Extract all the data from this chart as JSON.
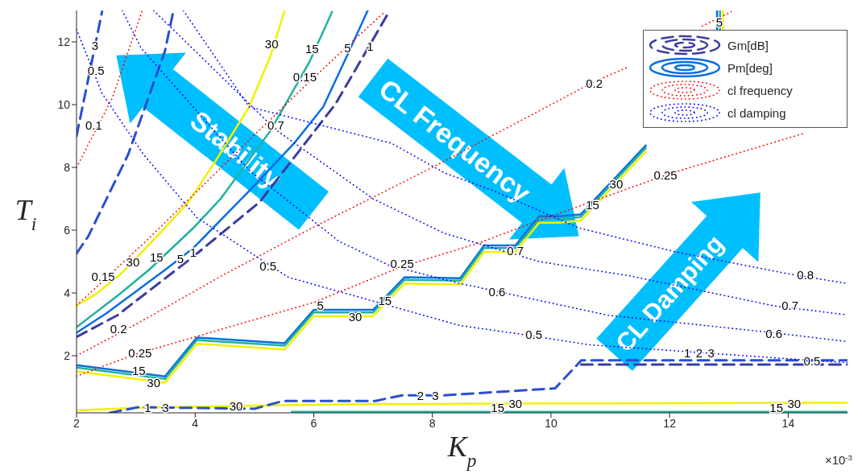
{
  "chart_data": {
    "type": "line",
    "xlabel": "K$_{p}$",
    "ylabel": "T$_{i}$",
    "xlim": [
      2,
      15
    ],
    "xticks": [
      2,
      4,
      6,
      8,
      10,
      12,
      14
    ],
    "ylim": [
      0.18,
      13
    ],
    "yticks": [
      2,
      4,
      6,
      8,
      10,
      12
    ],
    "legend": "top right",
    "series": [
      {
        "name": "Gm[dB]",
        "color": "#3c3ca0",
        "line_style": "dashed",
        "x": [
          2,
          2.69,
          3.93,
          5.09,
          6.37,
          7.27
        ],
        "values": [
          2.6,
          3.29,
          5.1,
          6.9,
          10.03,
          12.96
        ]
      },
      {
        "name": "Pm[deg]",
        "color": "#0a6ee0",
        "line_style": "solid",
        "x": [
          2,
          2.51,
          3.49,
          3.97,
          4.91,
          5.67,
          6.16,
          6.56,
          6.91
        ],
        "values": [
          2.73,
          3.36,
          4.73,
          5.43,
          7.25,
          8.77,
          9.93,
          11.55,
          13
        ]
      },
      {
        "color": "#20b2a0",
        "line_style": "solid",
        "x": [
          2,
          2.73,
          3.23,
          3.97,
          4.43,
          5.27,
          5.93,
          6.31
        ],
        "values": [
          2.91,
          3.97,
          4.75,
          6.07,
          7.0,
          9.17,
          11.37,
          12.96
        ]
      },
      {
        "color": "#f0f000",
        "line_style": "solid",
        "x": [
          2,
          2.33,
          2.76,
          3.49,
          3.89,
          4.33,
          4.91,
          5.27,
          5.51
        ],
        "values": [
          3.59,
          3.97,
          4.63,
          6.07,
          6.9,
          8.16,
          9.93,
          11.55,
          13
        ]
      },
      {
        "color": "#0a6ee0",
        "line_style": "solid",
        "x": [
          2,
          3.49,
          4.03,
          5.51,
          6.0,
          7.0,
          7.53,
          8.47,
          8.87,
          9.4,
          9.8,
          10.13,
          10.5,
          11.6,
          12.2,
          12.8,
          12.8
        ],
        "values": [
          1.7,
          1.34,
          2.58,
          2.4,
          3.46,
          3.46,
          4.5,
          4.47,
          5.51,
          5.51,
          6.44,
          6.44,
          6.5,
          8.7,
          null,
          12.35,
          13
        ]
      },
      {
        "color": "#20b2a0",
        "line_style": "solid",
        "x": [
          2,
          3.49,
          4.03,
          5.51,
          6.0,
          7.0,
          7.53,
          8.47,
          8.87,
          9.4,
          9.8,
          10.13,
          10.5,
          11.6,
          12.2,
          12.85,
          12.85
        ],
        "values": [
          1.62,
          1.26,
          2.5,
          2.32,
          3.38,
          3.38,
          4.42,
          4.39,
          5.43,
          5.43,
          6.36,
          6.36,
          6.42,
          8.62,
          null,
          12.35,
          13
        ]
      },
      {
        "color": "#f0f000",
        "line_style": "solid",
        "x": [
          2,
          3.49,
          4.03,
          5.51,
          6.0,
          7.0,
          7.53,
          8.47,
          8.87,
          9.4,
          9.8,
          10.13,
          10.5,
          11.6,
          12.2,
          12.9,
          12.9
        ],
        "values": [
          1.5,
          1.14,
          2.38,
          2.2,
          3.26,
          3.26,
          4.3,
          4.27,
          5.31,
          5.31,
          6.24,
          6.24,
          6.3,
          8.5,
          null,
          12.35,
          13
        ]
      },
      {
        "color": "#f0f000",
        "line_style": "solid",
        "x": [
          2,
          3,
          5,
          7,
          10,
          15
        ],
        "values": [
          0.26,
          0.34,
          0.41,
          0.46,
          0.48,
          0.5
        ]
      },
      {
        "color": "#20b2a0",
        "line_style": "solid",
        "x": [
          5.63,
          15
        ],
        "values": [
          0.21,
          0.21
        ]
      },
      {
        "color": "#2a4fd0",
        "line_style": "dashed",
        "x": [
          2,
          2.2,
          2.87,
          3.49,
          3.63
        ],
        "values": [
          5.26,
          5.81,
          8.41,
          11.7,
          12.96
        ]
      },
      {
        "color": "#2a4fd0",
        "line_style": "dashed",
        "x": [
          2,
          2.43
        ],
        "values": [
          9.0,
          12.96
        ]
      },
      {
        "color": "#2a4fd0",
        "line_style": "dashed",
        "x": [
          2.56,
          3.04,
          5.0,
          5.49,
          7.04,
          7.49,
          8.2,
          10.07,
          10.51,
          15
        ],
        "values": [
          0.18,
          0.36,
          0.31,
          0.56,
          0.56,
          0.74,
          0.74,
          0.96,
          1.85,
          1.85
        ]
      },
      {
        "color": "#3c3ca0",
        "line_style": "dashed",
        "x": [
          10.51,
          15
        ],
        "values": [
          1.72,
          1.72
        ]
      },
      {
        "color": "#ff0000",
        "line_style": "dotted",
        "x": [
          2,
          2.6,
          3.1
        ],
        "values": [
          8.0,
          10.2,
          12.96
        ]
      },
      {
        "color": "#ff0000",
        "line_style": "dotted",
        "x": [
          2,
          3.2,
          5.2,
          5.8,
          6.7,
          7.2
        ],
        "values": [
          3.6,
          5.7,
          9.4,
          10.5,
          12.1,
          12.96
        ]
      },
      {
        "name": "cl frequency",
        "color": "#ff0000",
        "line_style": "dotted",
        "x": [
          2,
          3,
          4.5,
          6,
          8,
          10.7,
          11.3,
          12.2,
          12.55,
          13.04
        ],
        "values": [
          2.0,
          3.0,
          4.6,
          6.1,
          8.0,
          10.7,
          11.2,
          null,
          12.5,
          12.96
        ]
      },
      {
        "color": "#ff0000",
        "line_style": "dotted",
        "x": [
          2,
          3,
          4,
          6,
          7.5,
          8.8,
          9.5,
          12,
          14.29
        ],
        "values": [
          1.35,
          2.05,
          2.6,
          3.7,
          4.85,
          5.6,
          6.1,
          7.8,
          9.1
        ]
      },
      {
        "name": "cl damping",
        "color": "#0000ff",
        "line_style": "dotted",
        "x": [
          2,
          2.43,
          3.13,
          4.03,
          5.57,
          8.47,
          9.44,
          10.64,
          14.4,
          15
        ],
        "values": [
          12.4,
          10.36,
          8.41,
          6.4,
          4.5,
          2.96,
          2.7,
          2.35,
          1.85,
          1.78
        ]
      },
      {
        "color": "#0000ff",
        "line_style": "dotted",
        "x": [
          2.77,
          3.09,
          4.91,
          6.43,
          7.27,
          8.47,
          9.09,
          10.96,
          13.76,
          15
        ],
        "values": [
          13,
          11.8,
          7.91,
          5.64,
          4.88,
          4.3,
          4.05,
          3.29,
          2.73,
          2.45
        ]
      },
      {
        "color": "#0000ff",
        "line_style": "dotted",
        "x": [
          3.3,
          5.36,
          7.0,
          8.2,
          9.8,
          11.31,
          13.76,
          15
        ],
        "values": [
          13,
          9.2,
          7.0,
          5.9,
          5.0,
          4.55,
          3.59,
          3.3
        ]
      },
      {
        "color": "#0000ff",
        "line_style": "dotted",
        "x": [
          3.8,
          4.91,
          7.31,
          8.2,
          9.04,
          10.47,
          12.1,
          14.03,
          15
        ],
        "values": [
          13,
          9.93,
          8.77,
          7.83,
          7.25,
          6.07,
          5.31,
          4.6,
          4.3
        ]
      }
    ],
    "annotations": [
      "Stability",
      "CL Frequency",
      "CL Damping",
      "×10$^{-3}$",
      {
        "text": "3",
        "x": 2.31,
        "y": 11.9
      },
      {
        "text": "0.5",
        "x": 2.33,
        "y": 11.1
      },
      {
        "text": "0.1",
        "x": 2.29,
        "y": 9.35
      },
      {
        "text": "30",
        "x": 5.29,
        "y": 11.95
      },
      {
        "text": "15",
        "x": 5.97,
        "y": 11.8
      },
      {
        "text": "5",
        "x": 6.57,
        "y": 11.83
      },
      {
        "text": "1",
        "x": 6.95,
        "y": 11.87
      },
      {
        "text": "0.15",
        "x": 5.85,
        "y": 10.9
      },
      {
        "text": "0.7",
        "x": 5.36,
        "y": 9.35
      },
      {
        "text": "0.15",
        "x": 2.45,
        "y": 4.55
      },
      {
        "text": "30",
        "x": 2.95,
        "y": 5.0
      },
      {
        "text": "15",
        "x": 3.35,
        "y": 5.15
      },
      {
        "text": "5",
        "x": 3.75,
        "y": 5.11
      },
      {
        "text": "1",
        "x": 3.97,
        "y": 5.3
      },
      {
        "text": "0.2",
        "x": 2.71,
        "y": 2.86
      },
      {
        "text": "0.25",
        "x": 3.07,
        "y": 2.1
      },
      {
        "text": "15",
        "x": 3.05,
        "y": 1.55
      },
      {
        "text": "30",
        "x": 3.3,
        "y": 1.15
      },
      {
        "text": "0.5",
        "x": 5.23,
        "y": 4.88
      },
      {
        "text": "5",
        "x": 6.11,
        "y": 3.62
      },
      {
        "text": "15",
        "x": 7.2,
        "y": 3.77
      },
      {
        "text": "30",
        "x": 6.7,
        "y": 3.26
      },
      {
        "text": "0.25",
        "x": 7.49,
        "y": 4.95
      },
      {
        "text": "15",
        "x": 10.7,
        "y": 6.82
      },
      {
        "text": "30",
        "x": 11.1,
        "y": 7.5
      },
      {
        "text": "0.2",
        "x": 10.73,
        "y": 10.69
      },
      {
        "text": "0.25",
        "x": 11.93,
        "y": 7.76
      },
      {
        "text": "5",
        "x": 12.84,
        "y": 12.65
      },
      {
        "text": "0.7",
        "x": 9.4,
        "y": 5.36
      },
      {
        "text": "0.6",
        "x": 9.09,
        "y": 4.05
      },
      {
        "text": "0.5",
        "x": 9.71,
        "y": 2.7
      },
      {
        "text": "0.8",
        "x": 14.29,
        "y": 4.6
      },
      {
        "text": "0.7",
        "x": 14.03,
        "y": 3.62
      },
      {
        "text": "0.6",
        "x": 13.76,
        "y": 2.73
      },
      {
        "text": "0.5",
        "x": 14.4,
        "y": 1.85
      },
      {
        "text": "1",
        "x": 12.3,
        "y": 2.1
      },
      {
        "text": "2",
        "x": 12.5,
        "y": 2.1
      },
      {
        "text": "3",
        "x": 12.7,
        "y": 2.1
      },
      {
        "text": "1",
        "x": 3.2,
        "y": 0.36
      },
      {
        "text": "3",
        "x": 3.5,
        "y": 0.35
      },
      {
        "text": "30",
        "x": 4.69,
        "y": 0.4
      },
      {
        "text": "2",
        "x": 7.8,
        "y": 0.74
      },
      {
        "text": "3",
        "x": 8.05,
        "y": 0.74
      },
      {
        "text": "15",
        "x": 9.1,
        "y": 0.35
      },
      {
        "text": "30",
        "x": 9.4,
        "y": 0.48
      },
      {
        "text": "15",
        "x": 13.8,
        "y": 0.35
      },
      {
        "text": "30",
        "x": 14.1,
        "y": 0.5
      }
    ]
  }
}
